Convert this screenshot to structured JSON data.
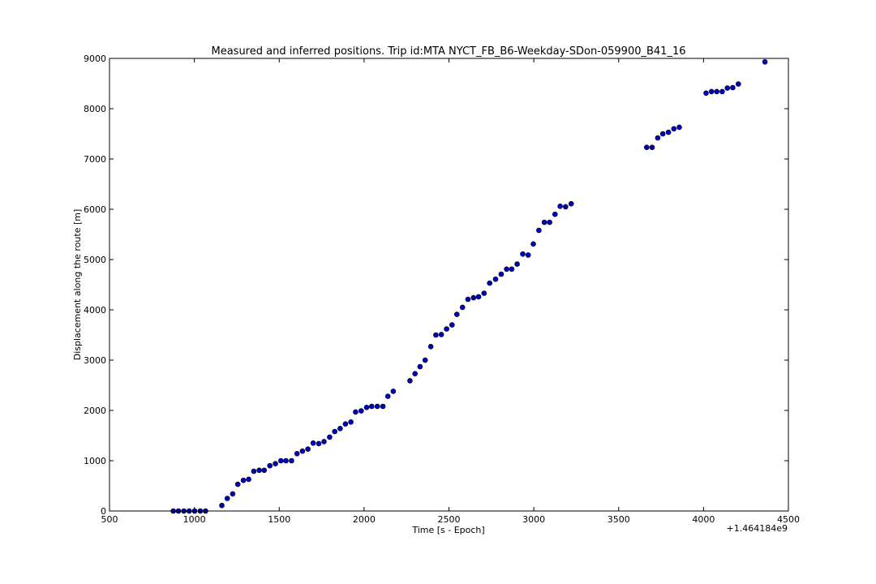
{
  "chart_data": {
    "type": "scatter",
    "title": "Measured and inferred positions. Trip id:MTA NYCT_FB_B6-Weekday-SDon-059900_B41_16",
    "xlabel": "Time [s - Epoch]",
    "ylabel": "Displacement along the route [m]",
    "x_offset_label": "+1.464184e9",
    "xlim": [
      500,
      4500
    ],
    "ylim": [
      0,
      9000
    ],
    "xticks": [
      500,
      1000,
      1500,
      2000,
      2500,
      3000,
      3500,
      4000,
      4500
    ],
    "yticks": [
      0,
      1000,
      2000,
      3000,
      4000,
      5000,
      6000,
      7000,
      8000,
      9000
    ],
    "xtick_labels": [
      "500",
      "1000",
      "1500",
      "2000",
      "2500",
      "3000",
      "3500",
      "4000",
      "4500"
    ],
    "ytick_labels": [
      "0",
      "1000",
      "2000",
      "3000",
      "4000",
      "5000",
      "6000",
      "7000",
      "8000",
      "9000"
    ],
    "grid": false,
    "marker_color": "#0000bf",
    "points": [
      [
        876,
        0
      ],
      [
        906,
        0
      ],
      [
        938,
        0
      ],
      [
        970,
        0
      ],
      [
        1002,
        0
      ],
      [
        1035,
        0
      ],
      [
        1066,
        0
      ],
      [
        1162,
        110
      ],
      [
        1194,
        250
      ],
      [
        1226,
        340
      ],
      [
        1256,
        530
      ],
      [
        1289,
        610
      ],
      [
        1320,
        630
      ],
      [
        1350,
        790
      ],
      [
        1382,
        810
      ],
      [
        1412,
        810
      ],
      [
        1445,
        900
      ],
      [
        1478,
        940
      ],
      [
        1510,
        1000
      ],
      [
        1540,
        1000
      ],
      [
        1573,
        1000
      ],
      [
        1605,
        1140
      ],
      [
        1637,
        1190
      ],
      [
        1669,
        1230
      ],
      [
        1700,
        1350
      ],
      [
        1733,
        1340
      ],
      [
        1764,
        1380
      ],
      [
        1797,
        1470
      ],
      [
        1827,
        1580
      ],
      [
        1859,
        1640
      ],
      [
        1890,
        1730
      ],
      [
        1922,
        1770
      ],
      [
        1950,
        1970
      ],
      [
        1983,
        1990
      ],
      [
        2015,
        2060
      ],
      [
        2045,
        2080
      ],
      [
        2078,
        2080
      ],
      [
        2111,
        2080
      ],
      [
        2140,
        2280
      ],
      [
        2172,
        2380
      ],
      [
        2270,
        2590
      ],
      [
        2300,
        2730
      ],
      [
        2330,
        2870
      ],
      [
        2360,
        3000
      ],
      [
        2393,
        3270
      ],
      [
        2423,
        3500
      ],
      [
        2455,
        3510
      ],
      [
        2486,
        3620
      ],
      [
        2518,
        3700
      ],
      [
        2547,
        3910
      ],
      [
        2580,
        4050
      ],
      [
        2612,
        4210
      ],
      [
        2645,
        4240
      ],
      [
        2675,
        4260
      ],
      [
        2707,
        4330
      ],
      [
        2740,
        4530
      ],
      [
        2775,
        4610
      ],
      [
        2808,
        4710
      ],
      [
        2840,
        4810
      ],
      [
        2870,
        4810
      ],
      [
        2902,
        4910
      ],
      [
        2935,
        5110
      ],
      [
        2967,
        5090
      ],
      [
        2997,
        5310
      ],
      [
        3030,
        5580
      ],
      [
        3062,
        5740
      ],
      [
        3093,
        5740
      ],
      [
        3125,
        5900
      ],
      [
        3155,
        6060
      ],
      [
        3187,
        6050
      ],
      [
        3220,
        6110
      ],
      [
        3665,
        7230
      ],
      [
        3697,
        7230
      ],
      [
        3730,
        7420
      ],
      [
        3760,
        7500
      ],
      [
        3793,
        7530
      ],
      [
        3825,
        7600
      ],
      [
        3857,
        7630
      ],
      [
        4015,
        8310
      ],
      [
        4047,
        8340
      ],
      [
        4078,
        8340
      ],
      [
        4110,
        8340
      ],
      [
        4140,
        8410
      ],
      [
        4172,
        8420
      ],
      [
        4205,
        8490
      ],
      [
        4362,
        8930
      ]
    ]
  }
}
